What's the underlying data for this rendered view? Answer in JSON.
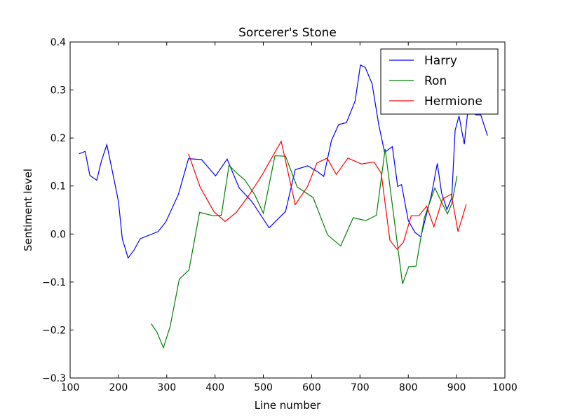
{
  "chart_data": {
    "type": "line",
    "title": "Sorcerer's Stone",
    "xlabel": "Line number",
    "ylabel": "Sentiment level",
    "xlim": [
      100,
      1000
    ],
    "ylim": [
      -0.3,
      0.4
    ],
    "x_ticks": [
      100,
      200,
      300,
      400,
      500,
      600,
      700,
      800,
      900,
      1000
    ],
    "x_tick_labels": [
      "100",
      "200",
      "300",
      "400",
      "500",
      "600",
      "700",
      "800",
      "900",
      "1000"
    ],
    "y_ticks": [
      -0.3,
      -0.2,
      -0.1,
      0.0,
      0.1,
      0.2,
      0.3,
      0.4
    ],
    "y_tick_labels": [
      "−0.3",
      "−0.2",
      "−0.1",
      "0.0",
      "0.1",
      "0.2",
      "0.3",
      "0.4"
    ],
    "grid": false,
    "legend_position": "top-right",
    "series": [
      {
        "name": "Harry",
        "color": "#0000ff",
        "x": [
          118,
          131,
          141,
          155,
          165,
          176,
          188,
          200,
          208,
          220,
          232,
          245,
          282,
          298,
          324,
          345,
          372,
          401,
          425,
          450,
          476,
          512,
          546,
          566,
          592,
          613,
          625,
          641,
          656,
          672,
          690,
          701,
          711,
          725,
          739,
          751,
          767,
          778,
          786,
          800,
          814,
          826,
          848,
          860,
          869,
          880,
          890,
          897,
          905,
          916,
          924,
          932,
          940,
          950,
          964
        ],
        "y": [
          0.167,
          0.172,
          0.122,
          0.112,
          0.153,
          0.186,
          0.128,
          0.068,
          -0.01,
          -0.05,
          -0.034,
          -0.01,
          0.005,
          0.025,
          0.082,
          0.157,
          0.155,
          0.121,
          0.156,
          0.096,
          0.068,
          0.013,
          0.047,
          0.134,
          0.142,
          0.129,
          0.12,
          0.195,
          0.228,
          0.232,
          0.277,
          0.352,
          0.347,
          0.313,
          0.227,
          0.17,
          0.182,
          0.099,
          0.103,
          0.028,
          0.003,
          -0.006,
          0.082,
          0.147,
          0.085,
          0.051,
          0.075,
          0.216,
          0.246,
          0.187,
          0.263,
          0.259,
          0.248,
          0.248,
          0.205
        ]
      },
      {
        "name": "Ron",
        "color": "#008000",
        "x": [
          268,
          280,
          293,
          307,
          326,
          346,
          368,
          396,
          413,
          429,
          446,
          462,
          482,
          500,
          524,
          546,
          570,
          603,
          633,
          660,
          686,
          712,
          734,
          752,
          788,
          801,
          816,
          833,
          855,
          869,
          881,
          890,
          901
        ],
        "y": [
          -0.187,
          -0.205,
          -0.237,
          -0.193,
          -0.094,
          -0.075,
          0.045,
          0.038,
          0.039,
          0.143,
          0.126,
          0.112,
          0.082,
          0.043,
          0.163,
          0.162,
          0.098,
          0.076,
          -0.002,
          -0.025,
          0.034,
          0.028,
          0.039,
          0.177,
          -0.104,
          -0.068,
          -0.067,
          0.033,
          0.096,
          0.066,
          0.042,
          0.063,
          0.121
        ]
      },
      {
        "name": "Hermione",
        "color": "#ff0000",
        "x": [
          345,
          369,
          398,
          421,
          444,
          471,
          498,
          517,
          537,
          566,
          591,
          611,
          632,
          651,
          675,
          703,
          729,
          744,
          762,
          777,
          790,
          806,
          822,
          838,
          853,
          871,
          889,
          903,
          920
        ],
        "y": [
          0.167,
          0.098,
          0.046,
          0.026,
          0.045,
          0.082,
          0.124,
          0.158,
          0.193,
          0.061,
          0.098,
          0.148,
          0.158,
          0.124,
          0.158,
          0.146,
          0.15,
          0.127,
          -0.013,
          -0.032,
          -0.017,
          0.038,
          0.038,
          0.058,
          0.015,
          0.073,
          0.083,
          0.005,
          0.062
        ]
      }
    ]
  }
}
